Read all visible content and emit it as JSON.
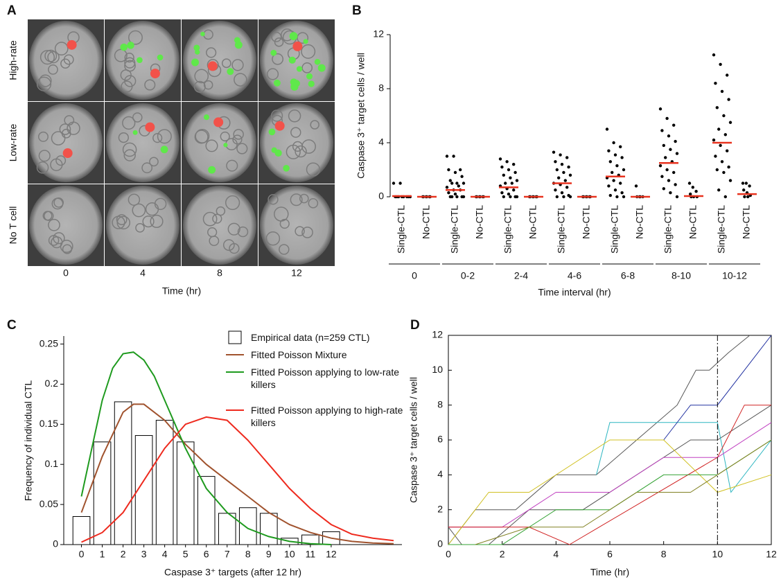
{
  "image_panel": {
    "label": "A",
    "rows": [
      "High-rate",
      "Low-rate",
      "No T cell"
    ],
    "columns": [
      "0",
      "4",
      "8",
      "12"
    ],
    "xlabel": "Time (hr)"
  },
  "chart_data": [
    {
      "type": "strip",
      "label": "B",
      "ylabel": "Caspase 3⁺ target cells / well",
      "xlabel": "Time interval (hr)",
      "ylim": [
        0,
        12
      ],
      "yticks": [
        0,
        4,
        8,
        12
      ],
      "mean_color": "#e8321e",
      "point_color": "#000000",
      "categories": [
        "Single-CTL",
        "No-CTL",
        "Single-CTL",
        "No-CTL",
        "Single-CTL",
        "No-CTL",
        "Single-CTL",
        "No-CTL",
        "Single-CTL",
        "No-CTL",
        "Single-CTL",
        "No-CTL",
        "Single-CTL",
        "No-CTL"
      ],
      "intervals": [
        "0",
        "0-2",
        "2-4",
        "4-6",
        "6-8",
        "8-10",
        "10-12"
      ],
      "means": [
        0.05,
        0,
        0.5,
        0,
        0.7,
        0,
        1.0,
        0,
        1.5,
        0,
        2.5,
        0.05,
        4.0,
        0.2
      ],
      "points": [
        [
          1,
          1,
          0,
          0,
          0,
          0,
          0,
          0,
          0,
          0
        ],
        [
          0,
          0,
          0,
          0,
          0,
          0
        ],
        [
          3,
          3,
          2,
          2,
          1.8,
          1.5,
          1.2,
          1,
          1,
          1,
          0.8,
          0.7,
          0.5,
          0.5,
          0.3,
          0.2,
          0,
          0,
          0,
          0,
          0
        ],
        [
          0,
          0,
          0,
          0,
          0,
          0
        ],
        [
          2.8,
          2.6,
          2.4,
          2.2,
          2,
          1.8,
          1.6,
          1.4,
          1.2,
          1,
          1,
          0.8,
          0.6,
          0.5,
          0.3,
          0.2,
          0,
          0,
          0,
          0
        ],
        [
          0,
          0,
          0,
          0,
          0,
          0
        ],
        [
          3.3,
          3.1,
          2.9,
          2.6,
          2.4,
          2.2,
          2,
          1.8,
          1.6,
          1.4,
          1.2,
          1,
          0.9,
          0.7,
          0.5,
          0.3,
          0.1,
          0,
          0,
          0
        ],
        [
          0,
          0,
          0,
          0,
          0,
          0
        ],
        [
          5,
          4,
          3.7,
          3.4,
          3.1,
          2.9,
          2.6,
          2.3,
          2,
          1.8,
          1.6,
          1.4,
          1.2,
          1,
          0.8,
          0.5,
          0.3,
          0.1,
          0,
          0
        ],
        [
          0.8,
          0,
          0,
          0,
          0
        ],
        [
          6.5,
          5.8,
          5.3,
          4.9,
          4.5,
          4.1,
          3.8,
          3.5,
          3.2,
          2.9,
          2.6,
          2.3,
          2,
          1.8,
          1.5,
          1.2,
          0.9,
          0.6,
          0.3,
          0
        ],
        [
          1,
          0.7,
          0.4,
          0.2,
          0,
          0,
          0
        ],
        [
          10.5,
          9.8,
          9,
          8.4,
          7.8,
          7.2,
          6.6,
          6,
          5.5,
          5,
          4.6,
          4.2,
          3.8,
          3.4,
          3,
          2.6,
          2.2,
          2,
          1.8,
          1.2,
          0.5,
          0
        ],
        [
          1,
          1,
          0.8,
          0.5,
          0.3,
          0.1,
          0,
          0
        ]
      ]
    },
    {
      "type": "bar",
      "label": "C",
      "ylabel": "Frequency of individual CTL",
      "xlabel": "Caspase 3⁺ targets (after 12 hr)",
      "xlim": [
        -0.85,
        15.4
      ],
      "xticks": [
        0,
        1,
        2,
        3,
        4,
        5,
        6,
        7,
        8,
        9,
        10,
        11,
        12
      ],
      "ylim": [
        0,
        0.26
      ],
      "yticks": [
        0,
        0.05,
        0.1,
        0.15,
        0.2,
        0.25
      ],
      "bar_name": "Empirical data (n=259 CTL)",
      "x": [
        0,
        1,
        2,
        3,
        4,
        5,
        6,
        7,
        8,
        9,
        10,
        11,
        12
      ],
      "values": [
        0.035,
        0.128,
        0.178,
        0.136,
        0.155,
        0.128,
        0.085,
        0.039,
        0.046,
        0.039,
        0.008,
        0.012,
        0.016
      ],
      "series": [
        {
          "name": "Fitted Poisson Mixture",
          "color": "#a0522d",
          "x": [
            0,
            1,
            2,
            2.5,
            3,
            4,
            5,
            6,
            7,
            8,
            9,
            10,
            11,
            12,
            13,
            14,
            15
          ],
          "values": [
            0.04,
            0.11,
            0.165,
            0.175,
            0.175,
            0.155,
            0.125,
            0.1,
            0.08,
            0.06,
            0.04,
            0.025,
            0.015,
            0.008,
            0.004,
            0.002,
            0.001
          ]
        },
        {
          "name": "Fitted Poisson applying to low-rate killers",
          "color": "#1e9a1e",
          "x": [
            0,
            0.5,
            1,
            1.5,
            2,
            2.5,
            3,
            3.5,
            4,
            5,
            6,
            7,
            8,
            9,
            10,
            11,
            12
          ],
          "values": [
            0.06,
            0.12,
            0.18,
            0.22,
            0.238,
            0.24,
            0.23,
            0.21,
            0.18,
            0.12,
            0.07,
            0.04,
            0.02,
            0.01,
            0.004,
            0.001,
            0
          ]
        },
        {
          "name": "Fitted Poisson applying to high-rate killers",
          "color": "#ee2a1e",
          "x": [
            0,
            1,
            2,
            3,
            4,
            5,
            6,
            7,
            8,
            9,
            10,
            11,
            12,
            13,
            14,
            15
          ],
          "values": [
            0.003,
            0.015,
            0.04,
            0.08,
            0.12,
            0.15,
            0.159,
            0.155,
            0.13,
            0.1,
            0.07,
            0.045,
            0.025,
            0.013,
            0.008,
            0.005
          ]
        }
      ]
    },
    {
      "type": "line",
      "label": "D",
      "ylabel": "Caspase 3⁺ target cells / well",
      "xlabel": "Time (hr)",
      "xlim": [
        0,
        12
      ],
      "xticks": [
        0,
        2,
        4,
        6,
        8,
        10,
        12
      ],
      "ylim": [
        0,
        12
      ],
      "yticks": [
        0,
        2,
        4,
        6,
        8,
        10,
        12
      ],
      "vline": 10,
      "series": [
        {
          "color": "#555555",
          "x": [
            0,
            1,
            2.5,
            4,
            5.5,
            7,
            8.5,
            9.2,
            9.7,
            10.4,
            11.2
          ],
          "values": [
            0,
            2,
            2,
            4,
            4,
            6,
            8,
            10,
            10,
            11,
            12
          ]
        },
        {
          "color": "#555555",
          "x": [
            0,
            0.5,
            1.5,
            3,
            5,
            7,
            9,
            10,
            12
          ],
          "values": [
            1,
            0,
            0,
            2,
            2,
            4,
            6,
            6,
            8
          ]
        },
        {
          "color": "#2ab5c0",
          "x": [
            5.5,
            6,
            10,
            10.5,
            12
          ],
          "values": [
            4,
            7,
            7,
            3,
            6
          ]
        },
        {
          "color": "#c040c0",
          "x": [
            0,
            2,
            4,
            6,
            8,
            10,
            12
          ],
          "values": [
            1,
            1,
            3,
            3,
            5,
            5,
            7
          ]
        },
        {
          "color": "#2030a0",
          "x": [
            8,
            9,
            10,
            11,
            12
          ],
          "values": [
            6,
            8,
            8,
            10,
            12
          ]
        },
        {
          "color": "#d02020",
          "x": [
            0,
            1,
            3,
            4.5,
            10,
            11,
            12
          ],
          "values": [
            1,
            1,
            1,
            0,
            5,
            8,
            8
          ]
        },
        {
          "color": "#d0c020",
          "x": [
            0,
            1.5,
            3,
            6,
            8,
            10,
            12
          ],
          "values": [
            0,
            3,
            3,
            6,
            6,
            3,
            4
          ]
        },
        {
          "color": "#30a030",
          "x": [
            0,
            2,
            4,
            6,
            8,
            10,
            12
          ],
          "values": [
            0,
            0,
            2,
            2,
            4,
            4,
            6
          ]
        },
        {
          "color": "#808020",
          "x": [
            1,
            3,
            5,
            7,
            9,
            11,
            12
          ],
          "values": [
            0,
            1,
            1,
            3,
            3,
            5,
            6
          ]
        }
      ]
    }
  ]
}
